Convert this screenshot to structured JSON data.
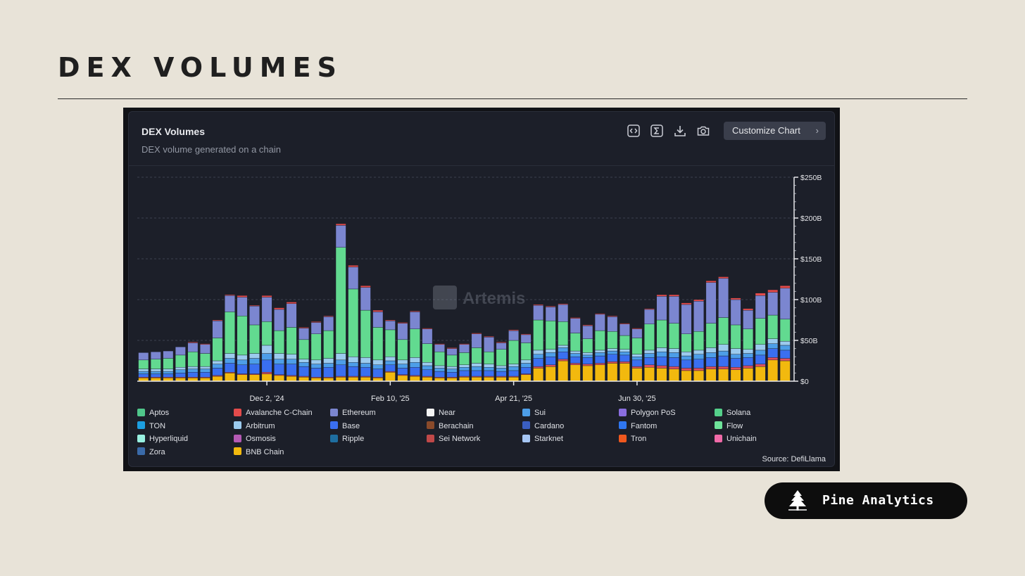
{
  "page": {
    "title": "DEX VOLUMES"
  },
  "card": {
    "title": "DEX Volumes",
    "subtitle": "DEX volume generated on a chain",
    "customize_label": "Customize Chart",
    "chevron": "›",
    "source": "Source: DefiLlama",
    "watermark": "Artemis",
    "toolbar_icons": [
      "embed-icon",
      "sum-icon",
      "download-icon",
      "camera-icon"
    ]
  },
  "brand": {
    "name": "Pine Analytics",
    "logo_icon": "pine-tree-icon"
  },
  "chart_data": {
    "type": "bar",
    "stacked": true,
    "title": "DEX Volumes",
    "subtitle": "DEX volume generated on a chain",
    "ylim": [
      0,
      250
    ],
    "yticks": [
      0,
      50,
      100,
      150,
      200,
      250
    ],
    "ytick_labels": [
      "$0",
      "$50B",
      "$100B",
      "$150B",
      "$200B",
      "$250B"
    ],
    "xtick_labels": [
      {
        "index": 10,
        "label": "Dec 2, '24"
      },
      {
        "index": 20,
        "label": "Feb 10, '25"
      },
      {
        "index": 30,
        "label": "Apr 21, '25"
      },
      {
        "index": 40,
        "label": "Jun 30, '25"
      }
    ],
    "legend": [
      {
        "name": "Aptos",
        "color": "#4fc68a"
      },
      {
        "name": "Avalanche C-Chain",
        "color": "#e34b4b"
      },
      {
        "name": "Ethereum",
        "color": "#7b86d0"
      },
      {
        "name": "Near",
        "color": "#f4f4f4"
      },
      {
        "name": "Sui",
        "color": "#4d9ee8"
      },
      {
        "name": "Polygon PoS",
        "color": "#8a6ee0"
      },
      {
        "name": "Solana",
        "color": "#54d08a"
      },
      {
        "name": "TON",
        "color": "#1c9ee0"
      },
      {
        "name": "Arbitrum",
        "color": "#9ccbee"
      },
      {
        "name": "Base",
        "color": "#3a6ff0"
      },
      {
        "name": "Berachain",
        "color": "#8a4a2a"
      },
      {
        "name": "Cardano",
        "color": "#3a5ec0"
      },
      {
        "name": "Fantom",
        "color": "#2f76f0"
      },
      {
        "name": "Flow",
        "color": "#6ee39a"
      },
      {
        "name": "Hyperliquid",
        "color": "#98f0e0"
      },
      {
        "name": "Osmosis",
        "color": "#b45ab4"
      },
      {
        "name": "Ripple",
        "color": "#1e6ea0"
      },
      {
        "name": "Sei Network",
        "color": "#c04848"
      },
      {
        "name": "Starknet",
        "color": "#a6c6f4"
      },
      {
        "name": "Tron",
        "color": "#f0581e"
      },
      {
        "name": "Unichain",
        "color": "#f06aa8"
      },
      {
        "name": "Zora",
        "color": "#3a6aa8"
      },
      {
        "name": "BNB Chain",
        "color": "#f2b90e"
      }
    ],
    "series_order": [
      "BNB Chain",
      "Sei Network",
      "Base",
      "Sui",
      "Arbitrum",
      "Solana",
      "Ethereum",
      "Avalanche C-Chain"
    ],
    "series_colors": {
      "BNB Chain": "#f2b90e",
      "Sei Network": "#e05060",
      "Base": "#3a6ff0",
      "Sui": "#4d9ee8",
      "Arbitrum": "#9ccbee",
      "Solana": "#62da90",
      "Ethereum": "#7b86d0",
      "Avalanche C-Chain": "#e34b4b"
    },
    "bars": [
      {
        "BNB Chain": 4,
        "Sei Network": 1,
        "Base": 4,
        "Sui": 3,
        "Arbitrum": 3,
        "Solana": 11,
        "Ethereum": 9,
        "Avalanche C-Chain": 0
      },
      {
        "BNB Chain": 4,
        "Sei Network": 1,
        "Base": 4,
        "Sui": 3,
        "Arbitrum": 3,
        "Solana": 12,
        "Ethereum": 9,
        "Avalanche C-Chain": 0
      },
      {
        "BNB Chain": 4,
        "Sei Network": 1,
        "Base": 4,
        "Sui": 3,
        "Arbitrum": 3,
        "Solana": 13,
        "Ethereum": 9,
        "Avalanche C-Chain": 0
      },
      {
        "BNB Chain": 4,
        "Sei Network": 1,
        "Base": 5,
        "Sui": 4,
        "Arbitrum": 3,
        "Solana": 15,
        "Ethereum": 10,
        "Avalanche C-Chain": 0
      },
      {
        "BNB Chain": 4,
        "Sei Network": 1,
        "Base": 6,
        "Sui": 4,
        "Arbitrum": 3,
        "Solana": 18,
        "Ethereum": 11,
        "Avalanche C-Chain": 1
      },
      {
        "BNB Chain": 4,
        "Sei Network": 1,
        "Base": 6,
        "Sui": 4,
        "Arbitrum": 3,
        "Solana": 16,
        "Ethereum": 11,
        "Avalanche C-Chain": 1
      },
      {
        "BNB Chain": 6,
        "Sei Network": 1,
        "Base": 9,
        "Sui": 5,
        "Arbitrum": 4,
        "Solana": 28,
        "Ethereum": 21,
        "Avalanche C-Chain": 1
      },
      {
        "BNB Chain": 10,
        "Sei Network": 1,
        "Base": 11,
        "Sui": 6,
        "Arbitrum": 6,
        "Solana": 51,
        "Ethereum": 20,
        "Avalanche C-Chain": 1
      },
      {
        "BNB Chain": 8,
        "Sei Network": 1,
        "Base": 11,
        "Sui": 6,
        "Arbitrum": 6,
        "Solana": 48,
        "Ethereum": 23,
        "Avalanche C-Chain": 2
      },
      {
        "BNB Chain": 8,
        "Sei Network": 1,
        "Base": 12,
        "Sui": 7,
        "Arbitrum": 6,
        "Solana": 35,
        "Ethereum": 23,
        "Avalanche C-Chain": 1
      },
      {
        "BNB Chain": 9,
        "Sei Network": 2,
        "Base": 15,
        "Sui": 8,
        "Arbitrum": 10,
        "Solana": 29,
        "Ethereum": 30,
        "Avalanche C-Chain": 2
      },
      {
        "BNB Chain": 7,
        "Sei Network": 1,
        "Base": 13,
        "Sui": 6,
        "Arbitrum": 7,
        "Solana": 28,
        "Ethereum": 26,
        "Avalanche C-Chain": 2
      },
      {
        "BNB Chain": 6,
        "Sei Network": 1,
        "Base": 14,
        "Sui": 6,
        "Arbitrum": 6,
        "Solana": 33,
        "Ethereum": 29,
        "Avalanche C-Chain": 2
      },
      {
        "BNB Chain": 5,
        "Sei Network": 1,
        "Base": 12,
        "Sui": 5,
        "Arbitrum": 4,
        "Solana": 24,
        "Ethereum": 14,
        "Avalanche C-Chain": 1
      },
      {
        "BNB Chain": 4,
        "Sei Network": 1,
        "Base": 11,
        "Sui": 5,
        "Arbitrum": 5,
        "Solana": 32,
        "Ethereum": 14,
        "Avalanche C-Chain": 1
      },
      {
        "BNB Chain": 4,
        "Sei Network": 1,
        "Base": 12,
        "Sui": 5,
        "Arbitrum": 6,
        "Solana": 34,
        "Ethereum": 17,
        "Avalanche C-Chain": 1
      },
      {
        "BNB Chain": 5,
        "Sei Network": 1,
        "Base": 14,
        "Sui": 6,
        "Arbitrum": 8,
        "Solana": 130,
        "Ethereum": 27,
        "Avalanche C-Chain": 2
      },
      {
        "BNB Chain": 5,
        "Sei Network": 1,
        "Base": 12,
        "Sui": 5,
        "Arbitrum": 7,
        "Solana": 83,
        "Ethereum": 27,
        "Avalanche C-Chain": 2
      },
      {
        "BNB Chain": 5,
        "Sei Network": 1,
        "Base": 11,
        "Sui": 5,
        "Arbitrum": 7,
        "Solana": 58,
        "Ethereum": 28,
        "Avalanche C-Chain": 2
      },
      {
        "BNB Chain": 4,
        "Sei Network": 1,
        "Base": 10,
        "Sui": 5,
        "Arbitrum": 6,
        "Solana": 40,
        "Ethereum": 19,
        "Avalanche C-Chain": 2
      },
      {
        "BNB Chain": 11,
        "Sei Network": 1,
        "Base": 8,
        "Sui": 5,
        "Arbitrum": 5,
        "Solana": 33,
        "Ethereum": 11,
        "Avalanche C-Chain": 1
      },
      {
        "BNB Chain": 7,
        "Sei Network": 1,
        "Base": 8,
        "Sui": 5,
        "Arbitrum": 5,
        "Solana": 25,
        "Ethereum": 20,
        "Avalanche C-Chain": 1
      },
      {
        "BNB Chain": 6,
        "Sei Network": 1,
        "Base": 10,
        "Sui": 6,
        "Arbitrum": 6,
        "Solana": 35,
        "Ethereum": 21,
        "Avalanche C-Chain": 1
      },
      {
        "BNB Chain": 5,
        "Sei Network": 1,
        "Base": 8,
        "Sui": 5,
        "Arbitrum": 4,
        "Solana": 23,
        "Ethereum": 18,
        "Avalanche C-Chain": 1
      },
      {
        "BNB Chain": 4,
        "Sei Network": 1,
        "Base": 7,
        "Sui": 4,
        "Arbitrum": 3,
        "Solana": 17,
        "Ethereum": 9,
        "Avalanche C-Chain": 1
      },
      {
        "BNB Chain": 4,
        "Sei Network": 1,
        "Base": 6,
        "Sui": 4,
        "Arbitrum": 3,
        "Solana": 14,
        "Ethereum": 8,
        "Avalanche C-Chain": 1
      },
      {
        "BNB Chain": 5,
        "Sei Network": 1,
        "Base": 7,
        "Sui": 4,
        "Arbitrum": 3,
        "Solana": 15,
        "Ethereum": 10,
        "Avalanche C-Chain": 1
      },
      {
        "BNB Chain": 5,
        "Sei Network": 1,
        "Base": 7,
        "Sui": 5,
        "Arbitrum": 4,
        "Solana": 19,
        "Ethereum": 17,
        "Avalanche C-Chain": 1
      },
      {
        "BNB Chain": 5,
        "Sei Network": 1,
        "Base": 7,
        "Sui": 4,
        "Arbitrum": 4,
        "Solana": 15,
        "Ethereum": 18,
        "Avalanche C-Chain": 1
      },
      {
        "BNB Chain": 5,
        "Sei Network": 1,
        "Base": 6,
        "Sui": 4,
        "Arbitrum": 3,
        "Solana": 20,
        "Ethereum": 8,
        "Avalanche C-Chain": 1
      },
      {
        "BNB Chain": 5,
        "Sei Network": 1,
        "Base": 7,
        "Sui": 5,
        "Arbitrum": 3,
        "Solana": 29,
        "Ethereum": 12,
        "Avalanche C-Chain": 1
      },
      {
        "BNB Chain": 8,
        "Sei Network": 1,
        "Base": 8,
        "Sui": 5,
        "Arbitrum": 4,
        "Solana": 21,
        "Ethereum": 10,
        "Avalanche C-Chain": 1
      },
      {
        "BNB Chain": 16,
        "Sei Network": 2,
        "Base": 10,
        "Sui": 5,
        "Arbitrum": 5,
        "Solana": 37,
        "Ethereum": 18,
        "Avalanche C-Chain": 1
      },
      {
        "BNB Chain": 18,
        "Sei Network": 2,
        "Base": 10,
        "Sui": 5,
        "Arbitrum": 4,
        "Solana": 35,
        "Ethereum": 17,
        "Avalanche C-Chain": 1
      },
      {
        "BNB Chain": 25,
        "Sei Network": 2,
        "Base": 9,
        "Sui": 5,
        "Arbitrum": 3,
        "Solana": 29,
        "Ethereum": 21,
        "Avalanche C-Chain": 1
      },
      {
        "BNB Chain": 20,
        "Sei Network": 2,
        "Base": 8,
        "Sui": 4,
        "Arbitrum": 3,
        "Solana": 22,
        "Ethereum": 18,
        "Avalanche C-Chain": 1
      },
      {
        "BNB Chain": 19,
        "Sei Network": 2,
        "Base": 8,
        "Sui": 3,
        "Arbitrum": 3,
        "Solana": 17,
        "Ethereum": 16,
        "Avalanche C-Chain": 1
      },
      {
        "BNB Chain": 20,
        "Sei Network": 2,
        "Base": 9,
        "Sui": 4,
        "Arbitrum": 3,
        "Solana": 24,
        "Ethereum": 20,
        "Avalanche C-Chain": 1
      },
      {
        "BNB Chain": 22,
        "Sei Network": 2,
        "Base": 9,
        "Sui": 4,
        "Arbitrum": 3,
        "Solana": 21,
        "Ethereum": 18,
        "Avalanche C-Chain": 1
      },
      {
        "BNB Chain": 22,
        "Sei Network": 2,
        "Base": 8,
        "Sui": 4,
        "Arbitrum": 3,
        "Solana": 17,
        "Ethereum": 14,
        "Avalanche C-Chain": 1
      },
      {
        "BNB Chain": 16,
        "Sei Network": 2,
        "Base": 8,
        "Sui": 4,
        "Arbitrum": 3,
        "Solana": 20,
        "Ethereum": 11,
        "Avalanche C-Chain": 1
      },
      {
        "BNB Chain": 17,
        "Sei Network": 3,
        "Base": 9,
        "Sui": 5,
        "Arbitrum": 4,
        "Solana": 32,
        "Ethereum": 18,
        "Avalanche C-Chain": 1
      },
      {
        "BNB Chain": 16,
        "Sei Network": 3,
        "Base": 11,
        "Sui": 6,
        "Arbitrum": 5,
        "Solana": 34,
        "Ethereum": 29,
        "Avalanche C-Chain": 2
      },
      {
        "BNB Chain": 15,
        "Sei Network": 3,
        "Base": 11,
        "Sui": 6,
        "Arbitrum": 5,
        "Solana": 31,
        "Ethereum": 33,
        "Avalanche C-Chain": 2
      },
      {
        "BNB Chain": 13,
        "Sei Network": 3,
        "Base": 10,
        "Sui": 5,
        "Arbitrum": 5,
        "Solana": 22,
        "Ethereum": 36,
        "Avalanche C-Chain": 2
      },
      {
        "BNB Chain": 13,
        "Sei Network": 3,
        "Base": 11,
        "Sui": 6,
        "Arbitrum": 5,
        "Solana": 23,
        "Ethereum": 37,
        "Avalanche C-Chain": 2
      },
      {
        "BNB Chain": 15,
        "Sei Network": 3,
        "Base": 11,
        "Sui": 6,
        "Arbitrum": 6,
        "Solana": 30,
        "Ethereum": 50,
        "Avalanche C-Chain": 2
      },
      {
        "BNB Chain": 15,
        "Sei Network": 3,
        "Base": 13,
        "Sui": 6,
        "Arbitrum": 8,
        "Solana": 33,
        "Ethereum": 48,
        "Avalanche C-Chain": 2
      },
      {
        "BNB Chain": 14,
        "Sei Network": 3,
        "Base": 11,
        "Sui": 5,
        "Arbitrum": 7,
        "Solana": 29,
        "Ethereum": 31,
        "Avalanche C-Chain": 2
      },
      {
        "BNB Chain": 16,
        "Sei Network": 3,
        "Base": 10,
        "Sui": 5,
        "Arbitrum": 5,
        "Solana": 25,
        "Ethereum": 23,
        "Avalanche C-Chain": 2
      },
      {
        "BNB Chain": 18,
        "Sei Network": 3,
        "Base": 11,
        "Sui": 6,
        "Arbitrum": 7,
        "Solana": 32,
        "Ethereum": 28,
        "Avalanche C-Chain": 3
      },
      {
        "BNB Chain": 26,
        "Sei Network": 3,
        "Base": 11,
        "Sui": 6,
        "Arbitrum": 6,
        "Solana": 29,
        "Ethereum": 28,
        "Avalanche C-Chain": 3
      },
      {
        "BNB Chain": 25,
        "Sei Network": 3,
        "Base": 10,
        "Sui": 6,
        "Arbitrum": 5,
        "Solana": 27,
        "Ethereum": 38,
        "Avalanche C-Chain": 3
      }
    ]
  }
}
